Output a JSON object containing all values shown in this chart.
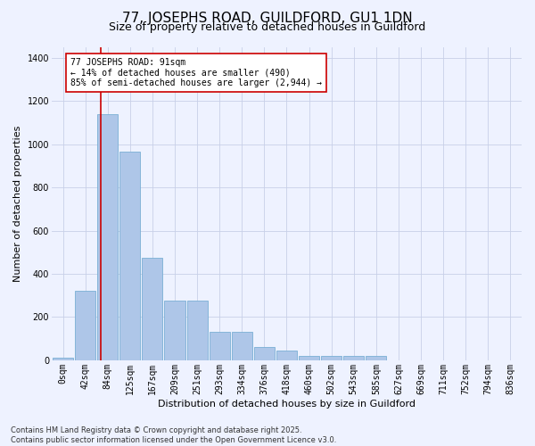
{
  "title": "77, JOSEPHS ROAD, GUILDFORD, GU1 1DN",
  "subtitle": "Size of property relative to detached houses in Guildford",
  "xlabel": "Distribution of detached houses by size in Guildford",
  "ylabel": "Number of detached properties",
  "bar_labels": [
    "0sqm",
    "42sqm",
    "84sqm",
    "125sqm",
    "167sqm",
    "209sqm",
    "251sqm",
    "293sqm",
    "334sqm",
    "376sqm",
    "418sqm",
    "460sqm",
    "502sqm",
    "543sqm",
    "585sqm",
    "627sqm",
    "669sqm",
    "711sqm",
    "752sqm",
    "794sqm",
    "836sqm"
  ],
  "bar_values": [
    10,
    320,
    1140,
    965,
    475,
    277,
    277,
    130,
    130,
    60,
    45,
    20,
    20,
    20,
    20,
    0,
    0,
    0,
    0,
    0,
    0
  ],
  "bar_color": "#aec6e8",
  "bar_edge_color": "#7aafd4",
  "background_color": "#eef2ff",
  "grid_color": "#c8d0e8",
  "vline_color": "#cc0000",
  "annotation_line1": "77 JOSEPHS ROAD: 91sqm",
  "annotation_line2": "← 14% of detached houses are smaller (490)",
  "annotation_line3": "85% of semi-detached houses are larger (2,944) →",
  "annotation_box_facecolor": "#ffffff",
  "annotation_box_edgecolor": "#cc0000",
  "ylim": [
    0,
    1450
  ],
  "yticks": [
    0,
    200,
    400,
    600,
    800,
    1000,
    1200,
    1400
  ],
  "footnote": "Contains HM Land Registry data © Crown copyright and database right 2025.\nContains public sector information licensed under the Open Government Licence v3.0.",
  "title_fontsize": 11,
  "subtitle_fontsize": 9,
  "label_fontsize": 8,
  "tick_fontsize": 7,
  "annotation_fontsize": 7,
  "footnote_fontsize": 6
}
